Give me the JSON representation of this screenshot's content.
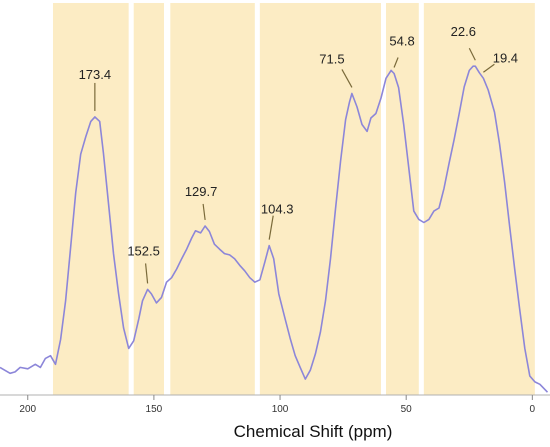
{
  "chart_data": {
    "type": "line",
    "title": "",
    "xlabel": "Chemical Shift (ppm)",
    "ylabel": "",
    "x_reversed": true,
    "xlim": [
      211,
      -7
    ],
    "ylim": [
      0,
      100
    ],
    "x_ticks": [
      {
        "value": 200,
        "label": "200"
      },
      {
        "value": 150,
        "label": "150"
      },
      {
        "value": 100,
        "label": "100"
      },
      {
        "value": 50,
        "label": "50"
      },
      {
        "value": 0,
        "label": "0"
      }
    ],
    "colors": {
      "line": "#8c86d9",
      "shaded_region": "#fcecc4",
      "region_gap": "#ffffff",
      "leader_line": "#7a6a3a"
    },
    "shaded_regions": [
      {
        "from": 190,
        "to": 160
      },
      {
        "from": 158,
        "to": 146
      },
      {
        "from": 143.5,
        "to": 110
      },
      {
        "from": 108,
        "to": 60
      },
      {
        "from": 58,
        "to": 45
      },
      {
        "from": 43,
        "to": -1
      }
    ],
    "peak_annotations": [
      {
        "x": 173.4,
        "label": "173.4"
      },
      {
        "x": 152.5,
        "label": "152.5"
      },
      {
        "x": 129.7,
        "label": "129.7"
      },
      {
        "x": 104.3,
        "label": "104.3"
      },
      {
        "x": 71.5,
        "label": "71.5"
      },
      {
        "x": 54.8,
        "label": "54.8"
      },
      {
        "x": 22.6,
        "label": "22.6"
      },
      {
        "x": 19.4,
        "label": "19.4"
      }
    ],
    "series": [
      {
        "x": [
          211,
          207,
          205,
          203,
          200,
          197,
          195,
          193,
          191,
          189,
          187,
          185,
          183,
          181,
          179,
          177,
          175,
          173.4,
          171.5,
          170,
          168,
          166,
          164,
          162,
          160,
          158,
          156,
          154.5,
          152.5,
          151,
          149,
          147,
          145,
          143,
          141,
          139,
          137,
          135,
          133.5,
          131.5,
          129.7,
          128,
          126,
          124,
          122,
          120,
          118,
          116,
          114,
          112,
          110,
          108,
          106,
          104.3,
          102.5,
          100.5,
          98,
          96,
          94,
          92,
          90,
          88,
          86,
          84,
          82,
          80,
          78,
          76,
          74,
          72.5,
          71.5,
          69.5,
          67.5,
          65.5,
          64,
          62,
          60,
          58,
          56,
          54.8,
          53,
          51,
          49,
          47,
          45,
          43,
          41,
          39,
          37,
          35,
          33,
          31,
          29,
          27,
          25,
          23.5,
          22.6,
          21,
          19.4,
          17.5,
          15,
          13,
          11,
          9,
          7,
          5,
          3,
          1,
          -1,
          -3,
          -6
        ],
        "y": [
          5.1,
          3.4,
          3.8,
          5.1,
          4.7,
          6.0,
          5.1,
          7.7,
          8.5,
          6.0,
          13.2,
          24.4,
          39.8,
          55.7,
          66.9,
          72.0,
          76.4,
          77.7,
          76.4,
          67.3,
          52.6,
          38.1,
          26.4,
          16.5,
          10.6,
          12.8,
          19.2,
          24.4,
          27.7,
          26.4,
          23.8,
          25.4,
          29.8,
          31.1,
          33.6,
          36.6,
          39.4,
          42.6,
          44.7,
          44.1,
          46.1,
          44.5,
          40.8,
          39.4,
          38.1,
          37.7,
          36.6,
          34.7,
          33.1,
          31.1,
          29.8,
          30.5,
          35.7,
          40.4,
          36.6,
          26.4,
          19.2,
          13.6,
          8.5,
          5.1,
          1.7,
          4.3,
          9.0,
          15.3,
          24.4,
          36.6,
          51.3,
          65.0,
          76.9,
          81.9,
          84.5,
          80.6,
          75.5,
          73.5,
          77.4,
          78.7,
          83.2,
          88.9,
          91.2,
          90.3,
          86.2,
          75.5,
          63.1,
          50.4,
          48.0,
          47.1,
          48.0,
          50.4,
          51.3,
          57.0,
          64.3,
          71.1,
          78.7,
          86.4,
          91.2,
          92.4,
          92.4,
          90.5,
          88.9,
          85.5,
          79.1,
          70.0,
          58.8,
          46.1,
          33.6,
          21.9,
          10.6,
          2.6,
          0.9,
          0.2,
          -2.1
        ]
      }
    ]
  }
}
